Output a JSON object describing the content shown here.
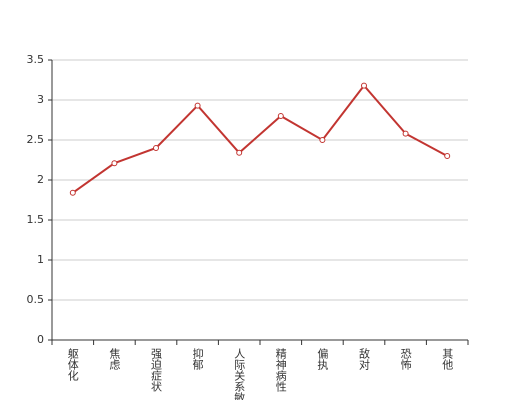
{
  "chart_data": {
    "type": "line",
    "categories": [
      "躯体化",
      "焦虑",
      "强迫症状",
      "抑郁",
      "人际关系敏感",
      "精神病性",
      "偏执",
      "敌对",
      "恐怖",
      "其他"
    ],
    "series": [
      {
        "color": "#c23531",
        "values": [
          1.84,
          2.21,
          2.4,
          2.93,
          2.34,
          2.8,
          2.5,
          3.18,
          2.58,
          2.3
        ]
      }
    ],
    "ylim": [
      0,
      3.5
    ],
    "yticks": [
      0,
      0.5,
      1,
      1.5,
      2,
      2.5,
      3,
      3.5
    ],
    "grid": true
  }
}
